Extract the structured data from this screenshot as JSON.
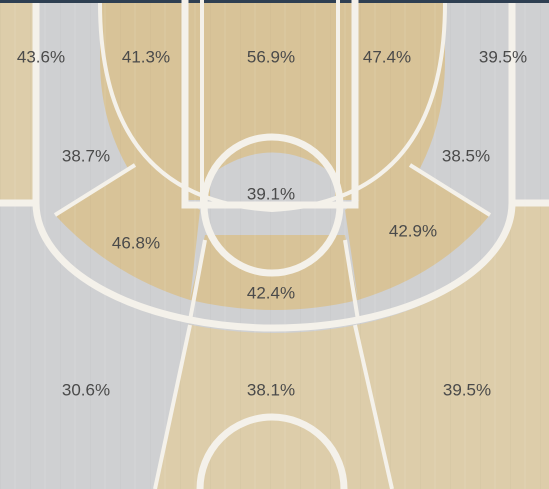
{
  "colors": {
    "cold": "#cfd0d2",
    "warm": "#d8c398",
    "mid": "#ddcdaa",
    "lines": "#f4f1ea",
    "top_bar": "#2e3f52"
  },
  "zones": [
    {
      "id": "left-corner-3",
      "label": "43.6%",
      "tone": "mid"
    },
    {
      "id": "left-baseline-mid",
      "label": "41.3%",
      "tone": "warm"
    },
    {
      "id": "paint-top",
      "label": "56.9%",
      "tone": "warm"
    },
    {
      "id": "right-baseline-mid",
      "label": "47.4%",
      "tone": "warm"
    },
    {
      "id": "right-corner-3",
      "label": "39.5%",
      "tone": "cold"
    },
    {
      "id": "left-short-corner",
      "label": "38.7%",
      "tone": "cold"
    },
    {
      "id": "right-short-corner",
      "label": "38.5%",
      "tone": "cold"
    },
    {
      "id": "restricted-area",
      "label": "39.1%",
      "tone": "cold"
    },
    {
      "id": "left-elbow",
      "label": "46.8%",
      "tone": "warm"
    },
    {
      "id": "right-elbow",
      "label": "42.9%",
      "tone": "warm"
    },
    {
      "id": "top-key",
      "label": "42.4%",
      "tone": "warm"
    },
    {
      "id": "left-wing-3",
      "label": "30.6%",
      "tone": "cold"
    },
    {
      "id": "top-3",
      "label": "38.1%",
      "tone": "mid"
    },
    {
      "id": "right-wing-3",
      "label": "39.5%",
      "tone": "mid"
    }
  ]
}
